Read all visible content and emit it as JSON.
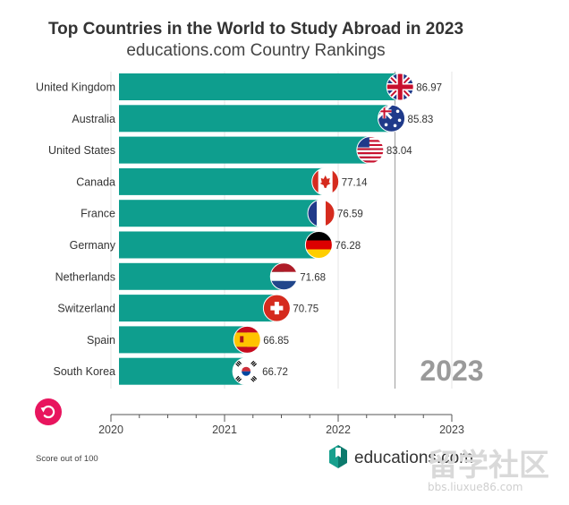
{
  "chart_data": {
    "type": "bar",
    "orientation": "horizontal",
    "title": "Top Countries in the World to Study Abroad in 2023",
    "subtitle": "educations.com Country Rankings",
    "categories": [
      "United Kingdom",
      "Australia",
      "United States",
      "Canada",
      "France",
      "Germany",
      "Netherlands",
      "Switzerland",
      "Spain",
      "South Korea"
    ],
    "values": [
      86.97,
      85.83,
      83.04,
      77.14,
      76.59,
      76.28,
      71.68,
      70.75,
      66.85,
      66.72
    ],
    "value_labels": [
      "86.97",
      "85.83",
      "83.04",
      "77.14",
      "76.59",
      "76.28",
      "71.68",
      "70.75",
      "66.85",
      "66.72"
    ],
    "timeline_ticks": [
      "2020",
      "2021",
      "2022",
      "2023"
    ],
    "timeline_position": 2022.5,
    "current_year": "2023",
    "footnote": "Score out of 100",
    "bar_color": "#0e9e8e",
    "flag_icons": [
      "uk-flag-icon",
      "australia-flag-icon",
      "usa-flag-icon",
      "canada-flag-icon",
      "france-flag-icon",
      "germany-flag-icon",
      "netherlands-flag-icon",
      "switzerland-flag-icon",
      "spain-flag-icon",
      "south-korea-flag-icon"
    ],
    "replay_icon": "replay-icon"
  },
  "branding": {
    "logo_text": "educations.com",
    "logo_icon": "educations-logo-icon",
    "watermark_text": "留学社区",
    "watermark_url": "bbs.liuxue86.com"
  }
}
